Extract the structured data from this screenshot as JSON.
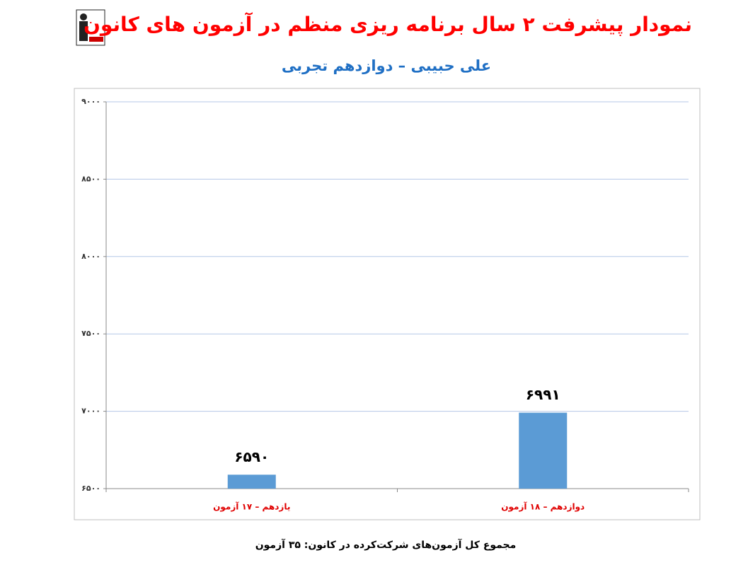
{
  "chart_data": {
    "type": "bar",
    "title": "نمودار پیشرفت ۲ سال برنامه ریزی منظم در آزمون های کانون",
    "subtitle": "علی حبیبی – دوازدهم تجربی",
    "categories": [
      "یازدهم – ۱۷ آزمون",
      "دوازدهم – ۱۸ آزمون"
    ],
    "values": [
      6590,
      6991
    ],
    "value_labels": [
      "۶۵۹۰",
      "۶۹۹۱"
    ],
    "color": "#5b9bd5",
    "ylim": [
      6500,
      9000
    ],
    "yticks": [
      {
        "value": 6500,
        "label": "۶۵۰۰"
      },
      {
        "value": 7000,
        "label": "۷۰۰۰"
      },
      {
        "value": 7500,
        "label": "۷۵۰۰"
      },
      {
        "value": 8000,
        "label": "۸۰۰۰"
      },
      {
        "value": 8500,
        "label": "۸۵۰۰"
      },
      {
        "value": 9000,
        "label": "۹۰۰۰"
      }
    ],
    "grid": true,
    "footnote": "مجموع کل آزمون‌های شرکت‌کرده در کانون: ۳۵ آزمون"
  }
}
